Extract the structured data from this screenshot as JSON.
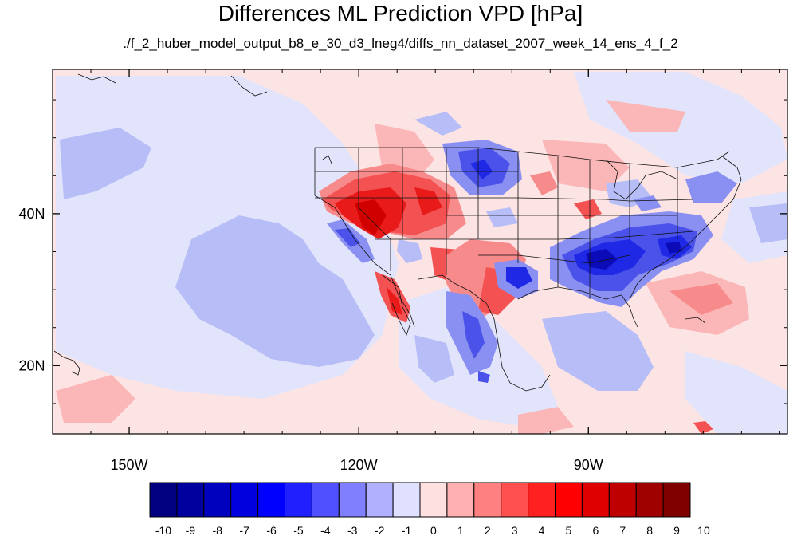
{
  "title": "Differences ML Prediction VPD [hPa]",
  "subtitle": "./f_2_huber_model_output_b8_e_30_d3_lneg4/diffs_nn_dataset_2007_week_14_ens_4_f_2",
  "map": {
    "lon_ticks": [
      {
        "value": -150,
        "label": "150W"
      },
      {
        "value": -120,
        "label": "120W"
      },
      {
        "value": -90,
        "label": "90W"
      }
    ],
    "lat_ticks": [
      {
        "value": 40,
        "label": "40N"
      },
      {
        "value": 20,
        "label": "20N"
      }
    ],
    "extent": {
      "lon": [
        -160,
        -64
      ],
      "lat": [
        11,
        59
      ]
    }
  },
  "colorbar": {
    "labels": [
      "-10",
      "-9",
      "-8",
      "-7",
      "-6",
      "-5",
      "-4",
      "-3",
      "-2",
      "-1",
      "0",
      "1",
      "2",
      "3",
      "4",
      "5",
      "6",
      "7",
      "8",
      "9",
      "10"
    ],
    "colors": [
      "#000080",
      "#00009f",
      "#0000bf",
      "#0000df",
      "#0000ff",
      "#2020ff",
      "#5050ff",
      "#8080ff",
      "#b0b0ff",
      "#e0e0ff",
      "#ffe0e0",
      "#ffb0b0",
      "#ff8080",
      "#ff5050",
      "#ff2020",
      "#ff0000",
      "#df0000",
      "#bf0000",
      "#9f0000",
      "#800000"
    ]
  }
}
